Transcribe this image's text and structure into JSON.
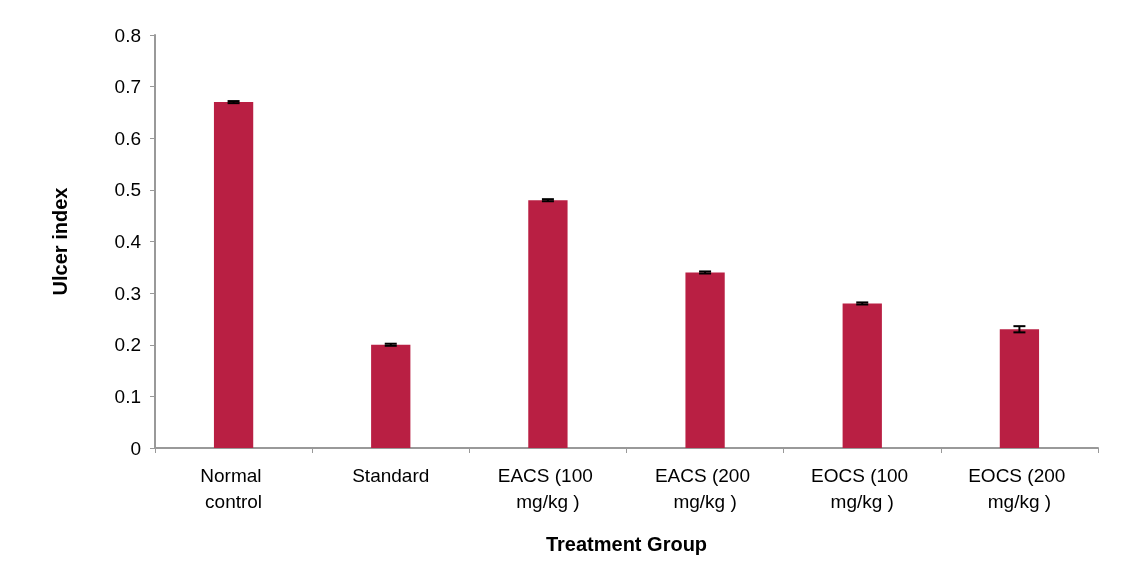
{
  "chart_data": {
    "type": "bar",
    "xlabel": "Treatment Group",
    "ylabel": "Ulcer index",
    "categories": [
      "Normal control",
      "Standard",
      "EACS (100 mg/kg )",
      "EACS (200 mg/kg )",
      "EOCS (100 mg/kg )",
      "EOCS (200 mg/kg )"
    ],
    "values": [
      0.67,
      0.2,
      0.48,
      0.34,
      0.28,
      0.23
    ],
    "errors": [
      0.002,
      0.002,
      0.002,
      0.002,
      0.002,
      0.006
    ],
    "color": "#b91f43",
    "ylim": [
      0,
      0.8
    ],
    "yticks": [
      0,
      0.1,
      0.2,
      0.3,
      0.4,
      0.5,
      0.6,
      0.7,
      0.8
    ],
    "grid": false
  }
}
